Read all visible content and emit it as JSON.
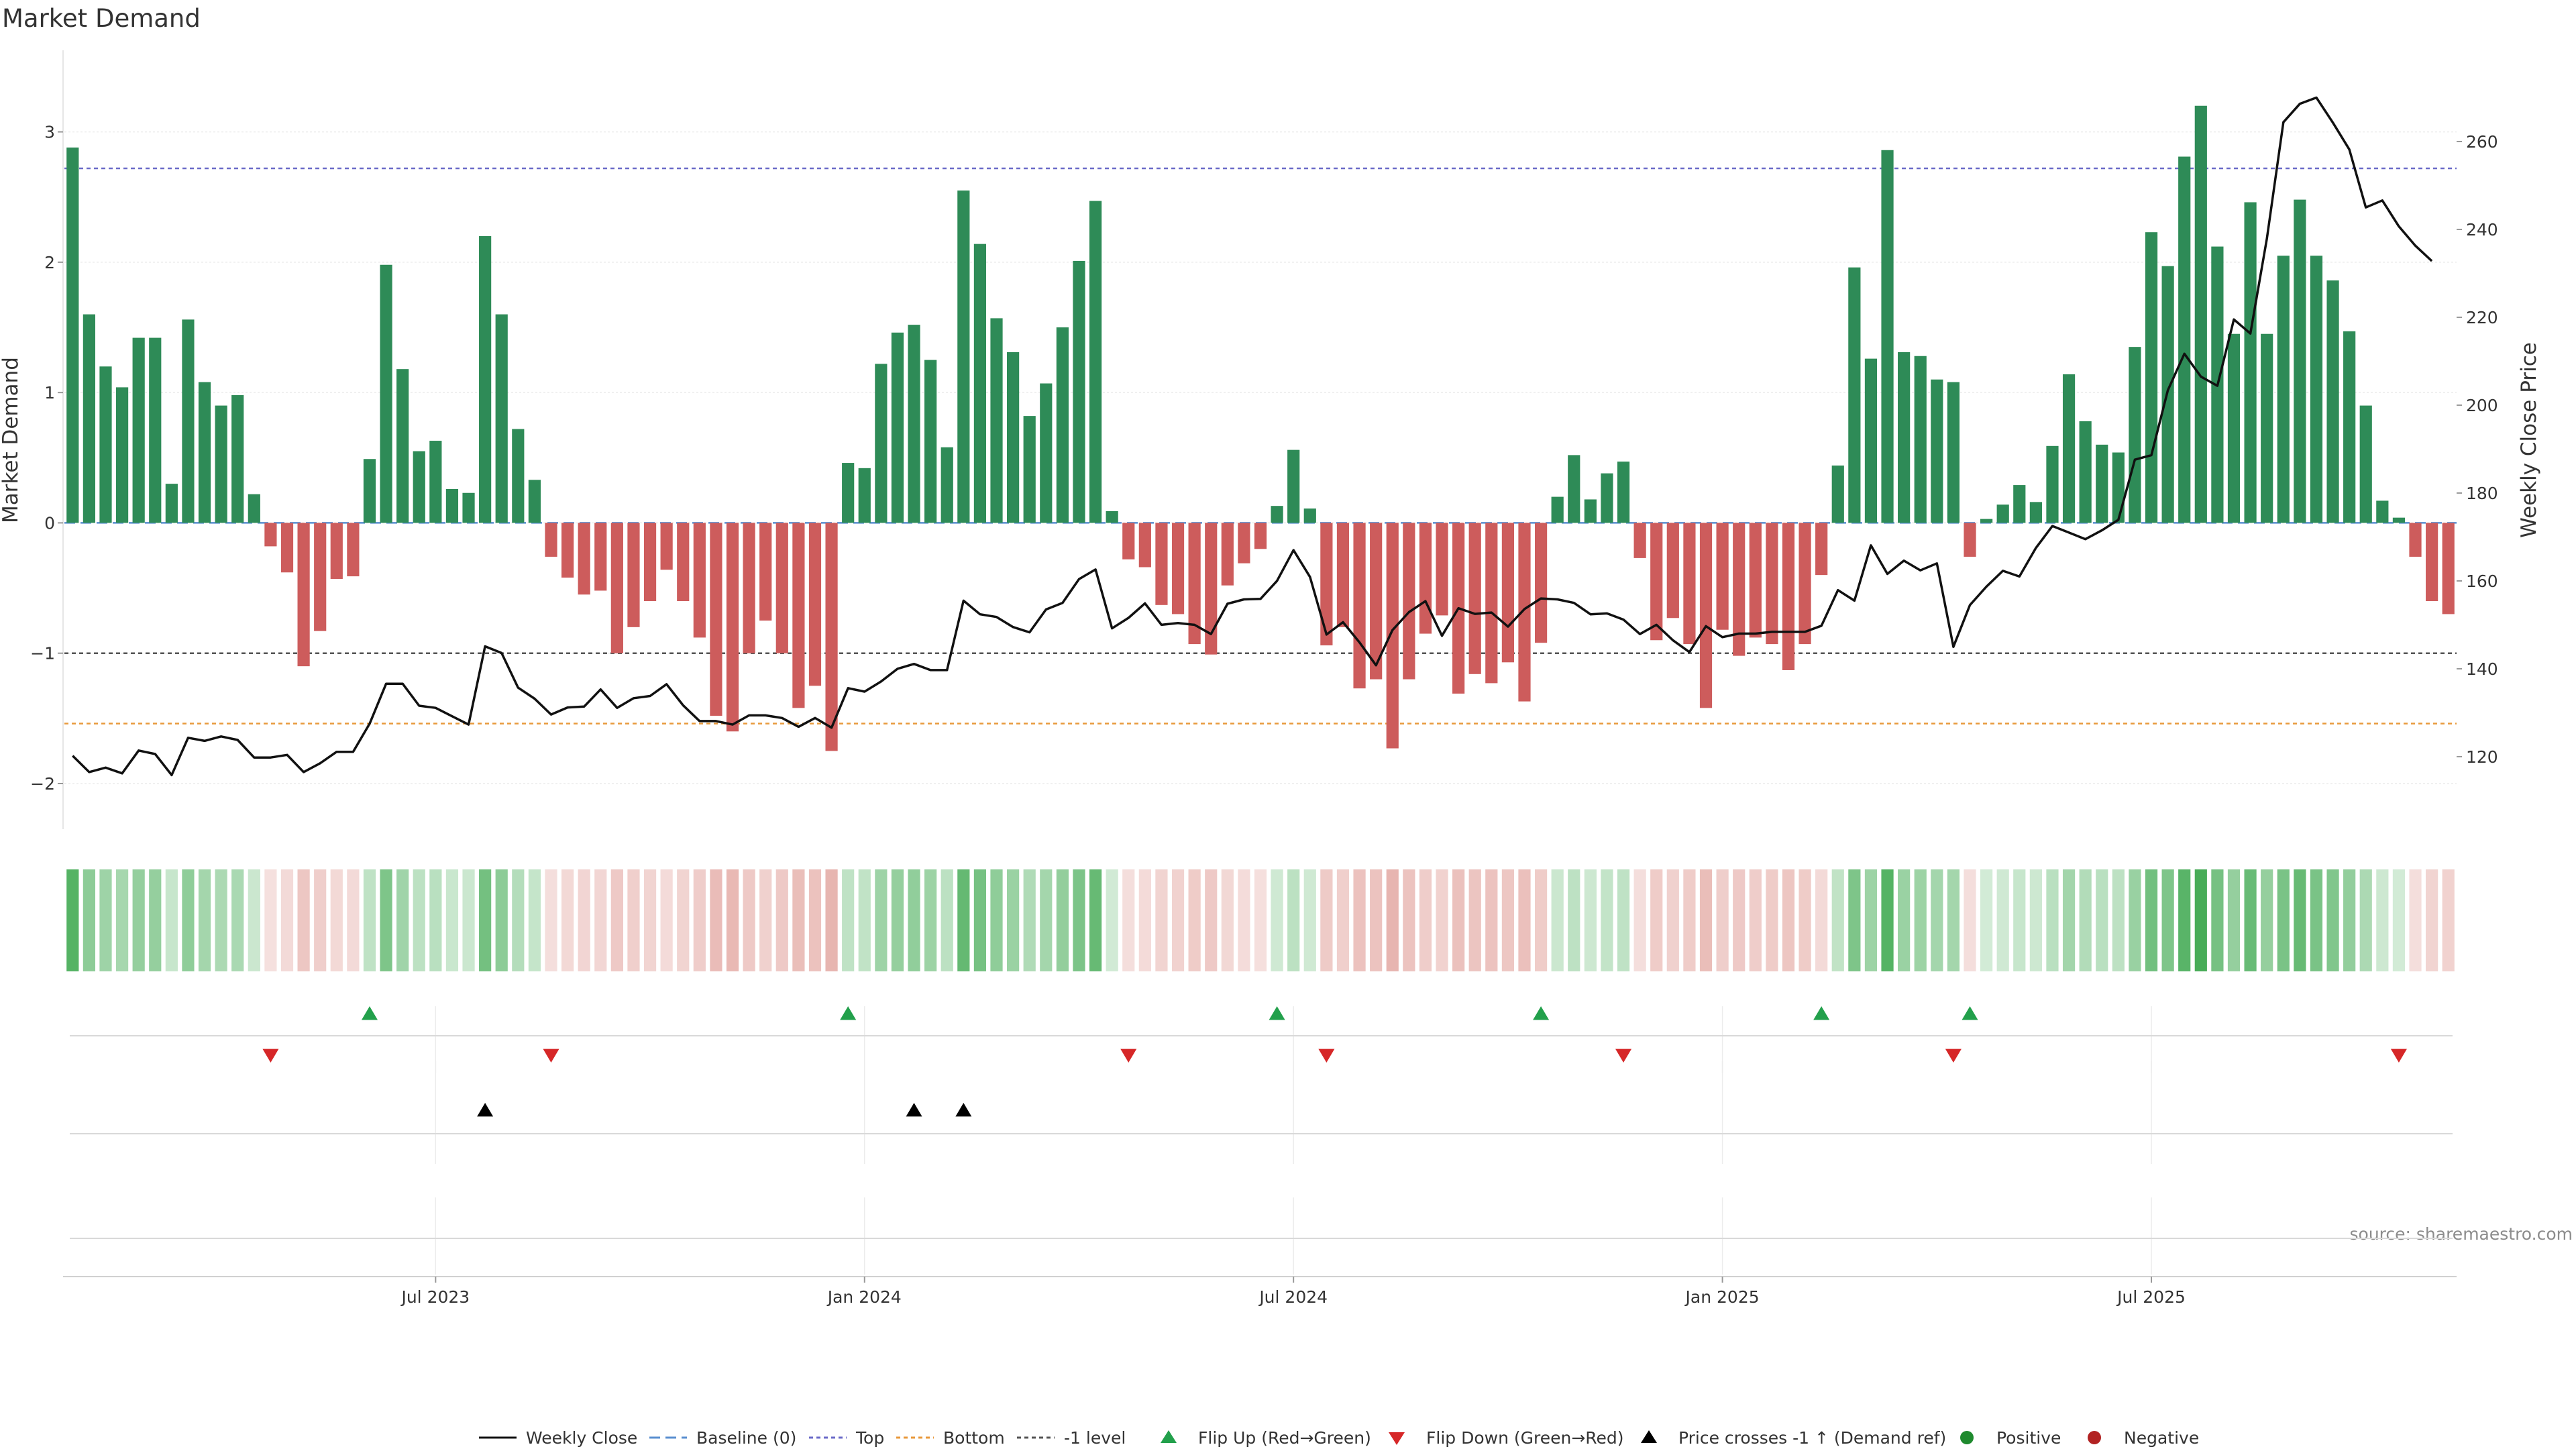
{
  "chart_data": {
    "type": "bar+line",
    "title": "Market Demand",
    "ylabel_left": "Market Demand",
    "ylabel_right": "Weekly Close Price",
    "source": "source: sharemaestro.com",
    "y_left": {
      "range": [
        -2.35,
        3.6
      ],
      "ticks": [
        -2,
        -1,
        0,
        1,
        2,
        3
      ],
      "tick_labels": [
        "−2",
        "−1",
        "0",
        "1",
        "2",
        "3"
      ]
    },
    "y_right": {
      "range": [
        103.5,
        280
      ],
      "ticks": [
        120,
        140,
        160,
        180,
        200,
        220,
        240,
        260
      ],
      "tick_labels": [
        "120",
        "140",
        "160",
        "180",
        "200",
        "220",
        "240",
        "260"
      ]
    },
    "x_ticks": [
      {
        "label": "Jul 2023",
        "week": 22
      },
      {
        "label": "Jan 2024",
        "week": 48
      },
      {
        "label": "Jul 2024",
        "week": 74
      },
      {
        "label": "Jan 2025",
        "week": 100
      },
      {
        "label": "Jul 2025",
        "week": 126
      }
    ],
    "reference_lines": [
      {
        "name": "Top",
        "value": 2.72,
        "color": "#6b6bc8",
        "dash": "6,5"
      },
      {
        "name": "Bottom",
        "value": -1.54,
        "color": "#e89a3c",
        "dash": "6,5"
      },
      {
        "name": "-1 level",
        "value": -1,
        "color": "#555555",
        "dash": "6,5"
      },
      {
        "name": "Baseline (0)",
        "value": 0,
        "color": "#5a8fd0",
        "dash": "16,8"
      }
    ],
    "colors": {
      "positive": "#2e8b57",
      "negative": "#cd5c5c",
      "price": "#111111",
      "flip_up": "#22a04b",
      "flip_down": "#d62728",
      "cross": "#000000",
      "strip_pos": "#3ea84f",
      "strip_neg": "#d98880"
    },
    "demand": [
      2.88,
      1.6,
      1.2,
      1.04,
      1.42,
      1.42,
      0.3,
      1.56,
      1.08,
      0.9,
      0.98,
      0.22,
      -0.18,
      -0.38,
      -1.1,
      -0.83,
      -0.43,
      -0.41,
      0.49,
      1.98,
      1.18,
      0.55,
      0.63,
      0.26,
      0.23,
      2.2,
      1.6,
      0.72,
      0.33,
      -0.26,
      -0.42,
      -0.55,
      -0.52,
      -1.0,
      -0.8,
      -0.6,
      -0.36,
      -0.6,
      -0.88,
      -1.48,
      -1.6,
      -1.0,
      -0.75,
      -1.0,
      -1.42,
      -1.25,
      -1.75,
      0.46,
      0.42,
      1.22,
      1.46,
      1.52,
      1.25,
      0.58,
      2.55,
      2.14,
      1.57,
      1.31,
      0.82,
      1.07,
      1.5,
      2.01,
      2.47,
      0.09,
      -0.28,
      -0.34,
      -0.63,
      -0.7,
      -0.93,
      -1.01,
      -0.48,
      -0.31,
      -0.2,
      0.13,
      0.56,
      0.11,
      -0.94,
      -0.8,
      -1.27,
      -1.2,
      -1.73,
      -1.2,
      -0.85,
      -0.71,
      -1.31,
      -1.16,
      -1.23,
      -1.07,
      -1.37,
      -0.92,
      0.2,
      0.52,
      0.18,
      0.38,
      0.47,
      -0.27,
      -0.9,
      -0.73,
      -0.93,
      -1.42,
      -0.82,
      -1.02,
      -0.88,
      -0.93,
      -1.13,
      -0.93,
      -0.4,
      0.44,
      1.96,
      1.26,
      2.86,
      1.31,
      1.28,
      1.1,
      1.08,
      -0.26,
      0.03,
      0.14,
      0.29,
      0.16,
      0.59,
      1.14,
      0.78,
      0.6,
      0.54,
      1.35,
      2.23,
      1.97,
      2.81,
      3.2,
      2.12,
      1.45,
      2.46,
      1.45,
      2.05,
      2.48,
      2.05,
      1.86,
      1.47,
      0.9,
      0.17,
      0.04,
      -0.26,
      -0.6,
      -0.7
    ],
    "price": [
      120.2,
      116.5,
      117.5,
      116.2,
      121.4,
      120.6,
      115.8,
      124.3,
      123.6,
      124.6,
      123.8,
      119.8,
      119.8,
      120.4,
      116.5,
      118.5,
      121.1,
      121.1,
      127.5,
      136.6,
      136.6,
      131.6,
      131.1,
      129.2,
      127.3,
      145.1,
      143.6,
      135.7,
      133.2,
      129.6,
      131.2,
      131.4,
      135.3,
      131.1,
      133.3,
      133.8,
      136.5,
      131.7,
      128.1,
      128.1,
      127.3,
      129.4,
      129.4,
      128.8,
      126.8,
      128.8,
      126.6,
      135.6,
      134.8,
      137.1,
      140.0,
      141.1,
      139.7,
      139.7,
      155.5,
      152.4,
      151.8,
      149.5,
      148.3,
      153.5,
      155.0,
      160.4,
      162.6,
      149.2,
      151.6,
      154.9,
      150.0,
      150.4,
      150.0,
      147.9,
      154.8,
      155.8,
      155.9,
      160.0,
      167.0,
      160.9,
      147.8,
      150.6,
      146.0,
      140.8,
      148.8,
      152.9,
      155.4,
      147.5,
      153.8,
      152.5,
      152.8,
      149.6,
      153.6,
      156.0,
      155.8,
      155.0,
      152.4,
      152.6,
      151.2,
      147.9,
      150.0,
      146.5,
      143.8,
      149.7,
      147.2,
      148.0,
      148.0,
      148.4,
      148.4,
      148.4,
      149.8,
      157.9,
      155.5,
      168.1,
      161.6,
      164.6,
      162.4,
      164.0,
      145.0,
      154.5,
      158.7,
      162.3,
      161.0,
      167.5,
      172.5,
      171.0,
      169.5,
      171.5,
      173.9,
      187.6,
      188.6,
      203.4,
      211.7,
      206.5,
      204.4,
      219.5,
      216.3,
      237.9,
      264.4,
      268.6,
      270.0,
      264.3,
      258.2,
      245.0,
      246.6,
      240.7,
      236.3,
      232.8
    ],
    "flip_up_weeks": [
      18,
      47,
      73,
      89,
      106,
      115
    ],
    "flip_down_weeks": [
      12,
      29,
      64,
      76,
      94,
      114,
      141
    ],
    "price_cross_weeks": [
      25,
      51,
      54
    ],
    "legend": [
      "Weekly Close",
      "Baseline (0)",
      "Top",
      "Bottom",
      "-1 level",
      "Flip Up (Red→Green)",
      "Flip Down (Green→Red)",
      "Price crosses -1 ↑ (Demand ref)",
      "Positive",
      "Negative"
    ]
  }
}
